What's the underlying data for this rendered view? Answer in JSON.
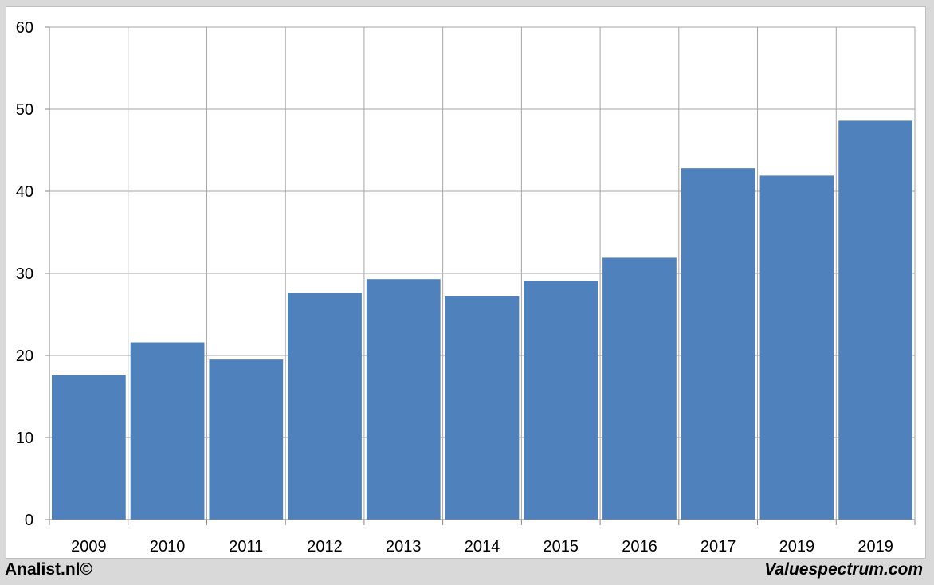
{
  "chart_data": {
    "type": "bar",
    "categories": [
      "2009",
      "2010",
      "2011",
      "2012",
      "2013",
      "2014",
      "2015",
      "2016",
      "2017",
      "2019",
      "2019"
    ],
    "values": [
      17.6,
      21.6,
      19.5,
      27.6,
      29.3,
      27.2,
      29.1,
      31.9,
      42.8,
      41.9,
      48.6
    ],
    "title": "",
    "xlabel": "",
    "ylabel": "",
    "ylim": [
      0,
      60
    ],
    "yticks": [
      0,
      10,
      20,
      30,
      40,
      50,
      60
    ],
    "grid": true,
    "bar_color": "#4f81bd"
  },
  "footer": {
    "left_text": "Analist.nl©",
    "right_text": "Valuespectrum.com"
  }
}
